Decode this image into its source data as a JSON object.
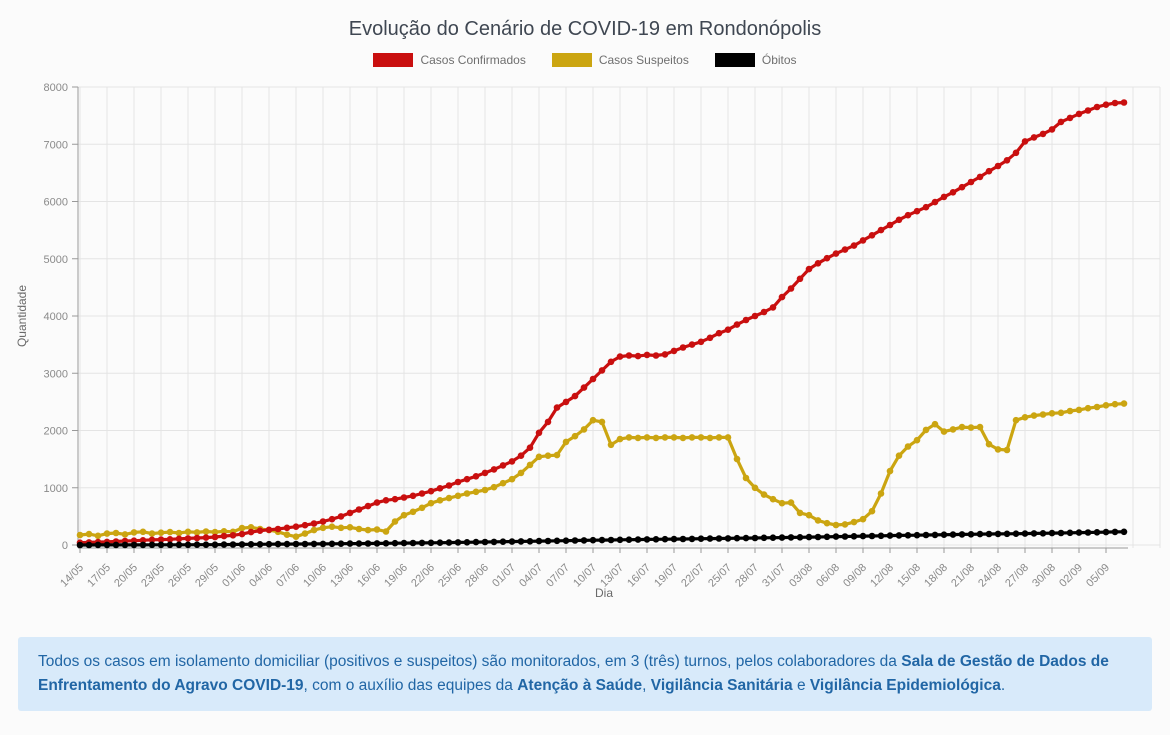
{
  "title": "Evolução do Cenário de COVID-19 em Rondonópolis",
  "legend": [
    {
      "label": "Casos Confirmados",
      "color": "#c90f0f"
    },
    {
      "label": "Casos Suspeitos",
      "color": "#cba511"
    },
    {
      "label": "Óbitos",
      "color": "#000000"
    }
  ],
  "theme": {
    "page_background": "#fbfbfb",
    "grid_color": "#e4e4e4",
    "axis_color": "#999999",
    "tick_text_color": "#8a8a8a",
    "title_color": "#3f4752",
    "footer_background": "#d8eafa",
    "footer_text_color": "#2166a5"
  },
  "chart_data": {
    "type": "line",
    "title": "Evolução do Cenário de COVID-19 em Rondonópolis",
    "xlabel": "Dia",
    "ylabel": "Quantidade",
    "ylim": [
      0,
      8000
    ],
    "y_ticks": [
      0,
      1000,
      2000,
      3000,
      4000,
      5000,
      6000,
      7000,
      8000
    ],
    "grid": true,
    "legend_position": "top",
    "x_tick_labels": [
      "14/05",
      "17/05",
      "20/05",
      "23/05",
      "26/05",
      "29/05",
      "01/06",
      "04/06",
      "07/06",
      "10/06",
      "13/06",
      "16/06",
      "19/06",
      "22/06",
      "25/06",
      "28/06",
      "01/07",
      "04/07",
      "07/07",
      "10/07",
      "13/07",
      "16/07",
      "19/07",
      "22/07",
      "25/07",
      "28/07",
      "31/07",
      "03/08",
      "06/08",
      "09/08",
      "12/08",
      "15/08",
      "18/08",
      "21/08",
      "24/08",
      "27/08",
      "30/08",
      "02/09",
      "05/09"
    ],
    "dates": [
      "14/05",
      "15/05",
      "16/05",
      "17/05",
      "18/05",
      "19/05",
      "20/05",
      "21/05",
      "22/05",
      "23/05",
      "24/05",
      "25/05",
      "26/05",
      "27/05",
      "28/05",
      "29/05",
      "30/05",
      "31/05",
      "01/06",
      "02/06",
      "03/06",
      "04/06",
      "05/06",
      "06/06",
      "07/06",
      "08/06",
      "09/06",
      "10/06",
      "11/06",
      "12/06",
      "13/06",
      "14/06",
      "15/06",
      "16/06",
      "17/06",
      "18/06",
      "19/06",
      "20/06",
      "21/06",
      "22/06",
      "23/06",
      "24/06",
      "25/06",
      "26/06",
      "27/06",
      "28/06",
      "29/06",
      "30/06",
      "01/07",
      "02/07",
      "03/07",
      "04/07",
      "05/07",
      "06/07",
      "07/07",
      "08/07",
      "09/07",
      "10/07",
      "11/07",
      "12/07",
      "13/07",
      "14/07",
      "15/07",
      "16/07",
      "17/07",
      "18/07",
      "19/07",
      "20/07",
      "21/07",
      "22/07",
      "23/07",
      "24/07",
      "25/07",
      "26/07",
      "27/07",
      "28/07",
      "29/07",
      "30/07",
      "31/07",
      "01/08",
      "02/08",
      "03/08",
      "04/08",
      "05/08",
      "06/08",
      "07/08",
      "08/08",
      "09/08",
      "10/08",
      "11/08",
      "12/08",
      "13/08",
      "14/08",
      "15/08",
      "16/08",
      "17/08",
      "18/08",
      "19/08",
      "20/08",
      "21/08",
      "22/08",
      "23/08",
      "24/08",
      "25/08",
      "26/08",
      "27/08",
      "28/08",
      "29/08",
      "30/08",
      "31/08",
      "01/09",
      "02/09",
      "03/09",
      "04/09",
      "05/09",
      "06/09",
      "07/09"
    ],
    "series": [
      {
        "name": "Casos Confirmados",
        "color": "#c90f0f",
        "values": [
          40,
          45,
          50,
          55,
          62,
          70,
          75,
          82,
          90,
          95,
          100,
          108,
          115,
          122,
          130,
          140,
          155,
          170,
          190,
          225,
          250,
          265,
          280,
          300,
          320,
          345,
          375,
          410,
          450,
          500,
          560,
          620,
          680,
          740,
          780,
          800,
          830,
          860,
          900,
          940,
          990,
          1040,
          1100,
          1150,
          1200,
          1260,
          1320,
          1390,
          1460,
          1560,
          1700,
          1960,
          2150,
          2400,
          2500,
          2600,
          2750,
          2900,
          3050,
          3200,
          3290,
          3310,
          3300,
          3320,
          3310,
          3330,
          3390,
          3450,
          3500,
          3550,
          3620,
          3700,
          3760,
          3850,
          3930,
          4000,
          4070,
          4150,
          4330,
          4480,
          4650,
          4820,
          4920,
          5010,
          5090,
          5160,
          5230,
          5320,
          5410,
          5500,
          5590,
          5680,
          5760,
          5830,
          5900,
          5990,
          6080,
          6160,
          6250,
          6340,
          6430,
          6530,
          6620,
          6720,
          6850,
          7050,
          7120,
          7180,
          7260,
          7390,
          7460,
          7530,
          7590,
          7650,
          7690,
          7720,
          7730
        ]
      },
      {
        "name": "Casos Suspeitos",
        "color": "#cba511",
        "values": [
          175,
          190,
          160,
          200,
          210,
          185,
          220,
          230,
          200,
          215,
          225,
          210,
          230,
          220,
          235,
          225,
          240,
          230,
          295,
          310,
          280,
          260,
          230,
          180,
          145,
          200,
          260,
          300,
          320,
          300,
          310,
          280,
          260,
          270,
          235,
          410,
          520,
          580,
          650,
          730,
          780,
          820,
          860,
          900,
          930,
          960,
          1010,
          1080,
          1150,
          1260,
          1400,
          1540,
          1560,
          1570,
          1800,
          1900,
          2020,
          2180,
          2150,
          1750,
          1850,
          1880,
          1870,
          1880,
          1870,
          1880,
          1880,
          1870,
          1880,
          1880,
          1870,
          1880,
          1880,
          1500,
          1170,
          1000,
          880,
          800,
          730,
          740,
          560,
          520,
          430,
          380,
          350,
          360,
          400,
          450,
          590,
          900,
          1290,
          1560,
          1720,
          1830,
          2010,
          2110,
          1980,
          2020,
          2060,
          2050,
          2060,
          1760,
          1670,
          1660,
          2180,
          2230,
          2260,
          2280,
          2300,
          2310,
          2340,
          2360,
          2390,
          2410,
          2440,
          2460,
          2470
        ]
      },
      {
        "name": "Óbitos",
        "color": "#000000",
        "values": [
          0,
          0,
          1,
          1,
          1,
          2,
          2,
          2,
          3,
          3,
          3,
          4,
          4,
          5,
          5,
          6,
          7,
          8,
          10,
          12,
          13,
          14,
          15,
          16,
          17,
          18,
          19,
          20,
          21,
          22,
          24,
          25,
          26,
          28,
          30,
          31,
          33,
          35,
          36,
          38,
          40,
          42,
          45,
          47,
          50,
          52,
          55,
          58,
          60,
          63,
          65,
          68,
          70,
          73,
          75,
          78,
          80,
          83,
          85,
          88,
          90,
          92,
          95,
          97,
          99,
          101,
          103,
          105,
          107,
          110,
          112,
          114,
          116,
          118,
          120,
          123,
          125,
          128,
          130,
          133,
          135,
          138,
          140,
          143,
          146,
          149,
          152,
          155,
          158,
          161,
          164,
          167,
          170,
          172,
          175,
          177,
          180,
          182,
          185,
          187,
          190,
          192,
          194,
          196,
          198,
          200,
          203,
          205,
          208,
          210,
          213,
          216,
          219,
          222,
          225,
          228,
          230
        ]
      }
    ]
  },
  "footer": {
    "segments": [
      {
        "text": "Todos os casos em isolamento domiciliar (positivos e suspeitos) são monitorados, em 3 (três) turnos, pelos colaboradores da ",
        "bold": false
      },
      {
        "text": "Sala de Gestão de Dados de Enfrentamento do Agravo COVID-19",
        "bold": true
      },
      {
        "text": ", com o auxílio das equipes da ",
        "bold": false
      },
      {
        "text": "Atenção à Saúde",
        "bold": true
      },
      {
        "text": ", ",
        "bold": false
      },
      {
        "text": "Vigilância Sanitária",
        "bold": true
      },
      {
        "text": " e ",
        "bold": false
      },
      {
        "text": "Vigilância Epidemiológica",
        "bold": true
      },
      {
        "text": ".",
        "bold": false
      }
    ]
  }
}
